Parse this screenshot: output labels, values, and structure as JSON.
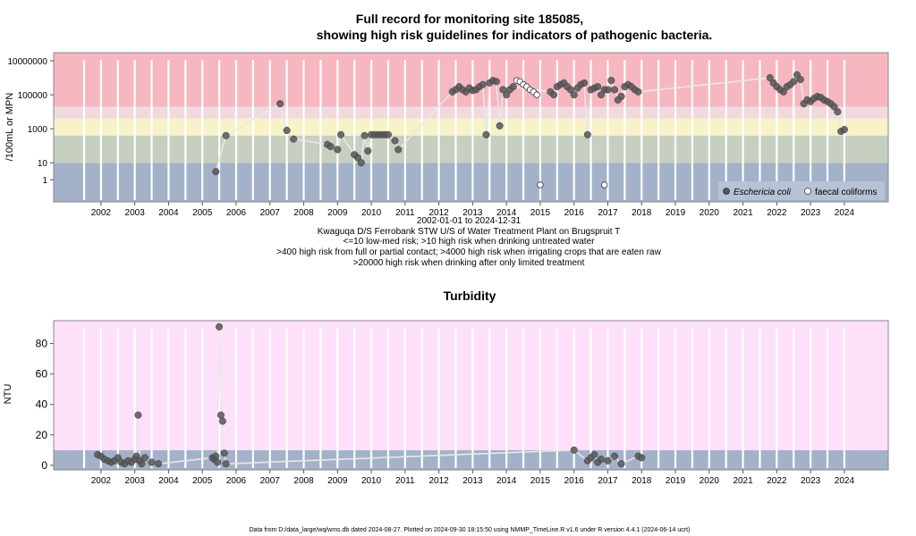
{
  "chart_data": [
    {
      "type": "scatter",
      "title_line1": "Full record for monitoring site 185085,",
      "title_line2": "showing high risk guidelines for indicators of pathogenic bacteria.",
      "ylabel": "/100mL or MPN",
      "yscale": "log",
      "ylim": [
        0.05,
        30000000
      ],
      "xlim": [
        2001.1,
        2025.8
      ],
      "year_ticks": [
        "2002",
        "2003",
        "2004",
        "2005",
        "2006",
        "2007",
        "2008",
        "2009",
        "2010",
        "2011",
        "2012",
        "2013",
        "2014",
        "2015",
        "2016",
        "2017",
        "2018",
        "2019",
        "2020",
        "2021",
        "2022",
        "2023",
        "2024"
      ],
      "ytick_labels": [
        "1",
        "10",
        "1000",
        "100000",
        "10000000"
      ],
      "ytick_values": [
        1,
        10,
        1000,
        100000,
        10000000
      ],
      "bands": [
        {
          "from": 0.05,
          "to": 10,
          "color": "#a3b2c9"
        },
        {
          "from": 10,
          "to": 400,
          "color": "#c6cfc0"
        },
        {
          "from": 400,
          "to": 4000,
          "color": "#f7f2c8"
        },
        {
          "from": 4000,
          "to": 20000,
          "color": "#f1d9e0"
        },
        {
          "from": 20000,
          "to": 30000000,
          "color": "#f6b7c1"
        }
      ],
      "caption": {
        "daterange": "2002-01-01 to 2024-12-31",
        "location": "Kwaguqa D/S Ferrobank STW U/S of Water Treatment Plant on Brugspruit T",
        "risk1": "<=10 low-med risk; >10 high risk when drinking untreated water",
        "risk2": ">400 high risk from full or partial contact; >4000 high risk when irrigating crops that are eaten raw",
        "risk3": ">20000 high risk when drinking after only limited treatment"
      },
      "legend": {
        "position": "bottom-right",
        "series1": "Eschericia coli",
        "series2": "faecal coliforms"
      },
      "series": [
        {
          "name": "Eschericia coli",
          "marker": "filled-circle",
          "x": [
            2005.9,
            2006.2,
            2007.8,
            2008.0,
            2008.2,
            2009.2,
            2009.3,
            2009.5,
            2009.6,
            2010.0,
            2010.1,
            2010.2,
            2010.3,
            2010.4,
            2010.5,
            2010.6,
            2010.7,
            2010.8,
            2010.9,
            2011.0,
            2011.2,
            2011.3,
            2012.9,
            2013.0,
            2013.1,
            2013.2,
            2013.3,
            2013.4,
            2013.5,
            2013.6,
            2013.7,
            2013.8,
            2013.9,
            2014.0,
            2014.1,
            2014.2,
            2014.3,
            2014.4,
            2014.5,
            2014.6,
            2014.7,
            2015.8,
            2015.9,
            2016.0,
            2016.1,
            2016.2,
            2016.3,
            2016.4,
            2016.5,
            2016.6,
            2016.7,
            2016.8,
            2016.9,
            2017.0,
            2017.1,
            2017.2,
            2017.3,
            2017.4,
            2017.5,
            2017.6,
            2017.7,
            2017.8,
            2017.9,
            2018.0,
            2018.1,
            2018.2,
            2018.3,
            2018.4,
            2022.3,
            2022.4,
            2022.5,
            2022.6,
            2022.7,
            2022.8,
            2022.9,
            2023.0,
            2023.1,
            2023.2,
            2023.3,
            2023.4,
            2023.5,
            2023.6,
            2023.7,
            2023.8,
            2023.9,
            2024.0,
            2024.1,
            2024.2,
            2024.3,
            2024.4,
            2024.5
          ],
          "y": [
            3,
            400,
            30000,
            800,
            250,
            120,
            90,
            60,
            450,
            30,
            20,
            10,
            400,
            50,
            450,
            450,
            450,
            450,
            450,
            450,
            200,
            60,
            150000,
            200000,
            300000,
            200000,
            150000,
            250000,
            180000,
            200000,
            300000,
            400000,
            450,
            500000,
            700000,
            600000,
            1500,
            200000,
            100000,
            200000,
            300000,
            150000,
            100000,
            300000,
            400000,
            500000,
            300000,
            200000,
            100000,
            250000,
            400000,
            500000,
            450,
            200000,
            250000,
            300000,
            100000,
            200000,
            200000,
            700000,
            200000,
            50000,
            80000,
            300000,
            400000,
            300000,
            200000,
            150000,
            1000000,
            500000,
            300000,
            200000,
            150000,
            300000,
            400000,
            600000,
            1500000,
            800000,
            30000,
            50000,
            40000,
            60000,
            80000,
            70000,
            50000,
            40000,
            30000,
            20000,
            10000,
            700,
            900
          ],
          "color": "#555555"
        },
        {
          "name": "faecal coliforms",
          "marker": "open-circle",
          "x": [
            2014.8,
            2014.9,
            2015.0,
            2015.1,
            2015.2,
            2015.3,
            2015.4,
            2015.5,
            2017.4
          ],
          "y": [
            700000,
            600000,
            400000,
            300000,
            200000,
            150000,
            100000,
            0.5,
            0.5
          ],
          "color": "#ffffff"
        }
      ]
    },
    {
      "type": "scatter",
      "title": "Turbidity",
      "ylabel": "NTU",
      "ylim": [
        -3,
        95
      ],
      "xlim": [
        2001.1,
        2025.8
      ],
      "year_ticks": [
        "2002",
        "2003",
        "2004",
        "2005",
        "2006",
        "2007",
        "2008",
        "2009",
        "2010",
        "2011",
        "2012",
        "2013",
        "2014",
        "2015",
        "2016",
        "2017",
        "2018",
        "2019",
        "2020",
        "2021",
        "2022",
        "2023",
        "2024"
      ],
      "ytick_labels": [
        "0",
        "20",
        "40",
        "60",
        "80"
      ],
      "ytick_values": [
        0,
        20,
        40,
        60,
        80
      ],
      "bands": [
        {
          "from": -3,
          "to": 10,
          "color": "#a3b2c9"
        },
        {
          "from": 10,
          "to": 95,
          "color": "#ffe0fb"
        }
      ],
      "series": [
        {
          "name": "",
          "marker": "filled-circle",
          "x": [
            2002.4,
            2002.5,
            2002.6,
            2002.7,
            2002.8,
            2002.9,
            2003.0,
            2003.1,
            2003.2,
            2003.3,
            2003.4,
            2003.5,
            2003.55,
            2003.6,
            2003.65,
            2003.7,
            2003.8,
            2004.0,
            2004.2,
            2005.8,
            2005.85,
            2005.9,
            2005.95,
            2006.0,
            2006.05,
            2006.1,
            2006.15,
            2006.2,
            2016.5,
            2016.9,
            2017.0,
            2017.1,
            2017.2,
            2017.3,
            2017.5,
            2017.7,
            2017.9,
            2018.4,
            2018.5
          ],
          "y": [
            7,
            6,
            4,
            3,
            2,
            3,
            5,
            2,
            1,
            3,
            2,
            4,
            6,
            33,
            3,
            1,
            5,
            2,
            1,
            5,
            4,
            6,
            2,
            91,
            33,
            29,
            8,
            1,
            10,
            3,
            5,
            7,
            2,
            4,
            3,
            6,
            1,
            6,
            5
          ],
          "color": "#555555"
        }
      ]
    }
  ],
  "footer": "Data from D:/data_large/wq/wms.db dated 2024-08-27. Plotted on 2024-09-30 18:15:50 using NMMP_TimeLine.R v1.6 under R version 4.4.1 (2024-06-14 ucrt)"
}
